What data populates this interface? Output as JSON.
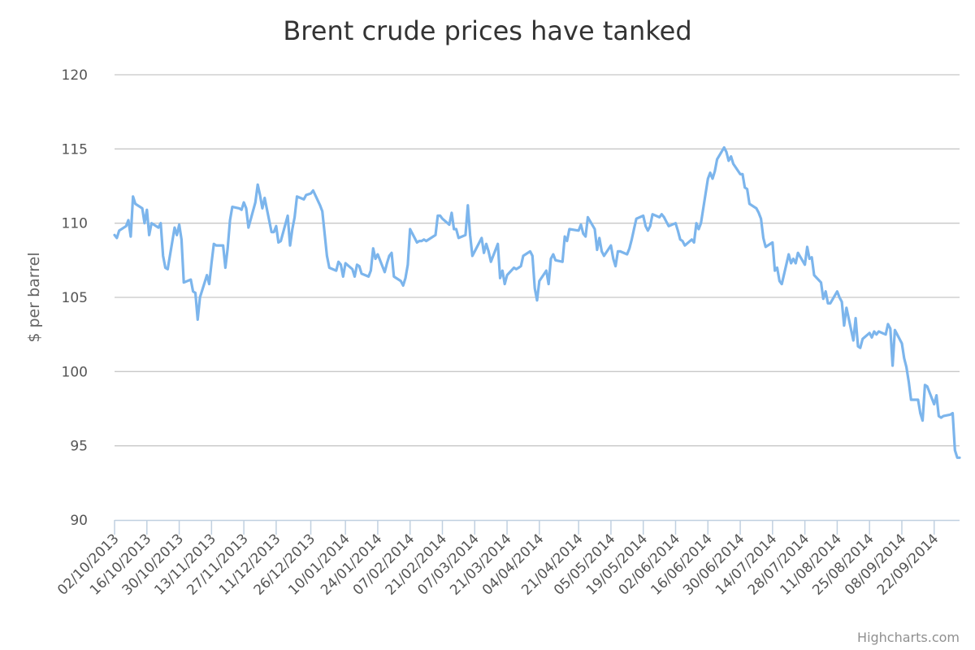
{
  "chart_data": {
    "type": "line",
    "title": "Brent crude prices have tanked",
    "ylabel": "$ per barrel",
    "xlabel": "",
    "ylim": [
      90,
      120
    ],
    "y_ticks": [
      "120",
      "115",
      "110",
      "105",
      "100",
      "95",
      "90"
    ],
    "x_tick_labels": [
      "02/10/2013",
      "16/10/2013",
      "30/10/2013",
      "13/11/2013",
      "27/11/2013",
      "11/12/2013",
      "26/12/2013",
      "10/01/2014",
      "24/01/2014",
      "07/02/2014",
      "21/02/2014",
      "07/03/2014",
      "21/03/2014",
      "04/04/2014",
      "21/04/2014",
      "05/05/2014",
      "19/05/2014",
      "02/06/2014",
      "16/06/2014",
      "30/06/2014",
      "14/07/2014",
      "28/07/2014",
      "11/08/2014",
      "25/08/2014",
      "08/09/2014",
      "22/09/2014"
    ],
    "grid": true,
    "legend": "none",
    "series": [
      {
        "color": "#7cb5ec",
        "points": [
          [
            "02/10/2013",
            109.2
          ],
          [
            "03/10/2013",
            109.0
          ],
          [
            "04/10/2013",
            109.5
          ],
          [
            "07/10/2013",
            109.8
          ],
          [
            "08/10/2013",
            110.2
          ],
          [
            "09/10/2013",
            109.1
          ],
          [
            "10/10/2013",
            111.8
          ],
          [
            "11/10/2013",
            111.3
          ],
          [
            "14/10/2013",
            111.0
          ],
          [
            "15/10/2013",
            110.0
          ],
          [
            "16/10/2013",
            110.9
          ],
          [
            "17/10/2013",
            109.2
          ],
          [
            "18/10/2013",
            110.0
          ],
          [
            "21/10/2013",
            109.7
          ],
          [
            "22/10/2013",
            110.0
          ],
          [
            "23/10/2013",
            107.8
          ],
          [
            "24/10/2013",
            107.0
          ],
          [
            "25/10/2013",
            106.9
          ],
          [
            "28/10/2013",
            109.7
          ],
          [
            "29/10/2013",
            109.2
          ],
          [
            "30/10/2013",
            109.9
          ],
          [
            "31/10/2013",
            108.9
          ],
          [
            "01/11/2013",
            106.0
          ],
          [
            "04/11/2013",
            106.2
          ],
          [
            "05/11/2013",
            105.4
          ],
          [
            "06/11/2013",
            105.3
          ],
          [
            "07/11/2013",
            103.5
          ],
          [
            "08/11/2013",
            105.0
          ],
          [
            "11/11/2013",
            106.5
          ],
          [
            "12/11/2013",
            105.9
          ],
          [
            "13/11/2013",
            107.3
          ],
          [
            "14/11/2013",
            108.6
          ],
          [
            "15/11/2013",
            108.5
          ],
          [
            "18/11/2013",
            108.5
          ],
          [
            "19/11/2013",
            107.0
          ],
          [
            "20/11/2013",
            108.3
          ],
          [
            "21/11/2013",
            110.2
          ],
          [
            "22/11/2013",
            111.1
          ],
          [
            "25/11/2013",
            111.0
          ],
          [
            "26/11/2013",
            110.9
          ],
          [
            "27/11/2013",
            111.4
          ],
          [
            "28/11/2013",
            111.0
          ],
          [
            "29/11/2013",
            109.7
          ],
          [
            "02/12/2013",
            111.4
          ],
          [
            "03/12/2013",
            112.6
          ],
          [
            "04/12/2013",
            111.9
          ],
          [
            "05/12/2013",
            111.0
          ],
          [
            "06/12/2013",
            111.7
          ],
          [
            "09/12/2013",
            109.4
          ],
          [
            "10/12/2013",
            109.4
          ],
          [
            "11/12/2013",
            109.8
          ],
          [
            "12/12/2013",
            108.7
          ],
          [
            "13/12/2013",
            108.8
          ],
          [
            "16/12/2013",
            110.5
          ],
          [
            "17/12/2013",
            108.5
          ],
          [
            "18/12/2013",
            109.6
          ],
          [
            "19/12/2013",
            110.4
          ],
          [
            "20/12/2013",
            111.8
          ],
          [
            "23/12/2013",
            111.6
          ],
          [
            "24/12/2013",
            111.9
          ],
          [
            "26/12/2013",
            112.0
          ],
          [
            "27/12/2013",
            112.2
          ],
          [
            "30/12/2013",
            111.2
          ],
          [
            "31/12/2013",
            110.8
          ],
          [
            "02/01/2014",
            107.8
          ],
          [
            "03/01/2014",
            107.0
          ],
          [
            "06/01/2014",
            106.8
          ],
          [
            "07/01/2014",
            107.4
          ],
          [
            "08/01/2014",
            107.2
          ],
          [
            "09/01/2014",
            106.4
          ],
          [
            "10/01/2014",
            107.3
          ],
          [
            "13/01/2014",
            106.9
          ],
          [
            "14/01/2014",
            106.4
          ],
          [
            "15/01/2014",
            107.2
          ],
          [
            "16/01/2014",
            107.1
          ],
          [
            "17/01/2014",
            106.6
          ],
          [
            "20/01/2014",
            106.4
          ],
          [
            "21/01/2014",
            106.8
          ],
          [
            "22/01/2014",
            108.3
          ],
          [
            "23/01/2014",
            107.6
          ],
          [
            "24/01/2014",
            107.9
          ],
          [
            "27/01/2014",
            106.7
          ],
          [
            "28/01/2014",
            107.3
          ],
          [
            "29/01/2014",
            107.8
          ],
          [
            "30/01/2014",
            108.0
          ],
          [
            "31/01/2014",
            106.4
          ],
          [
            "03/02/2014",
            106.1
          ],
          [
            "04/02/2014",
            105.8
          ],
          [
            "05/02/2014",
            106.3
          ],
          [
            "06/02/2014",
            107.2
          ],
          [
            "07/02/2014",
            109.6
          ],
          [
            "10/02/2014",
            108.7
          ],
          [
            "11/02/2014",
            108.8
          ],
          [
            "12/02/2014",
            108.8
          ],
          [
            "13/02/2014",
            108.9
          ],
          [
            "14/02/2014",
            108.8
          ],
          [
            "17/02/2014",
            109.1
          ],
          [
            "18/02/2014",
            109.2
          ],
          [
            "19/02/2014",
            110.5
          ],
          [
            "20/02/2014",
            110.5
          ],
          [
            "21/02/2014",
            110.3
          ],
          [
            "24/02/2014",
            109.9
          ],
          [
            "25/02/2014",
            110.7
          ],
          [
            "26/02/2014",
            109.6
          ],
          [
            "27/02/2014",
            109.6
          ],
          [
            "28/02/2014",
            109.0
          ],
          [
            "03/03/2014",
            109.2
          ],
          [
            "04/03/2014",
            111.2
          ],
          [
            "05/03/2014",
            109.2
          ],
          [
            "06/03/2014",
            107.8
          ],
          [
            "07/03/2014",
            108.1
          ],
          [
            "10/03/2014",
            109.0
          ],
          [
            "11/03/2014",
            108.0
          ],
          [
            "12/03/2014",
            108.6
          ],
          [
            "13/03/2014",
            108.1
          ],
          [
            "14/03/2014",
            107.4
          ],
          [
            "17/03/2014",
            108.6
          ],
          [
            "18/03/2014",
            106.3
          ],
          [
            "19/03/2014",
            106.8
          ],
          [
            "20/03/2014",
            105.9
          ],
          [
            "21/03/2014",
            106.5
          ],
          [
            "24/03/2014",
            107.0
          ],
          [
            "25/03/2014",
            106.9
          ],
          [
            "26/03/2014",
            107.0
          ],
          [
            "27/03/2014",
            107.1
          ],
          [
            "28/03/2014",
            107.8
          ],
          [
            "31/03/2014",
            108.1
          ],
          [
            "01/04/2014",
            107.8
          ],
          [
            "02/04/2014",
            105.6
          ],
          [
            "03/04/2014",
            104.8
          ],
          [
            "04/04/2014",
            106.1
          ],
          [
            "07/04/2014",
            106.8
          ],
          [
            "08/04/2014",
            105.9
          ],
          [
            "09/04/2014",
            107.6
          ],
          [
            "10/04/2014",
            107.9
          ],
          [
            "11/04/2014",
            107.5
          ],
          [
            "14/04/2014",
            107.4
          ],
          [
            "15/04/2014",
            109.1
          ],
          [
            "16/04/2014",
            108.8
          ],
          [
            "17/04/2014",
            109.6
          ],
          [
            "21/04/2014",
            109.5
          ],
          [
            "22/04/2014",
            109.9
          ],
          [
            "23/04/2014",
            109.3
          ],
          [
            "24/04/2014",
            109.1
          ],
          [
            "25/04/2014",
            110.4
          ],
          [
            "28/04/2014",
            109.6
          ],
          [
            "29/04/2014",
            108.2
          ],
          [
            "30/04/2014",
            109.0
          ],
          [
            "01/05/2014",
            108.1
          ],
          [
            "02/05/2014",
            107.8
          ],
          [
            "05/05/2014",
            108.5
          ],
          [
            "06/05/2014",
            107.6
          ],
          [
            "07/05/2014",
            107.1
          ],
          [
            "08/05/2014",
            108.1
          ],
          [
            "09/05/2014",
            108.1
          ],
          [
            "12/05/2014",
            107.9
          ],
          [
            "13/05/2014",
            108.3
          ],
          [
            "14/05/2014",
            108.9
          ],
          [
            "15/05/2014",
            109.6
          ],
          [
            "16/05/2014",
            110.3
          ],
          [
            "19/05/2014",
            110.5
          ],
          [
            "20/05/2014",
            109.8
          ],
          [
            "21/05/2014",
            109.5
          ],
          [
            "22/05/2014",
            109.8
          ],
          [
            "23/05/2014",
            110.6
          ],
          [
            "26/05/2014",
            110.4
          ],
          [
            "27/05/2014",
            110.6
          ],
          [
            "28/05/2014",
            110.4
          ],
          [
            "29/05/2014",
            110.1
          ],
          [
            "30/05/2014",
            109.8
          ],
          [
            "02/06/2014",
            110.0
          ],
          [
            "03/06/2014",
            109.5
          ],
          [
            "04/06/2014",
            108.9
          ],
          [
            "05/06/2014",
            108.8
          ],
          [
            "06/06/2014",
            108.5
          ],
          [
            "09/06/2014",
            108.9
          ],
          [
            "10/06/2014",
            108.7
          ],
          [
            "11/06/2014",
            110.0
          ],
          [
            "12/06/2014",
            109.6
          ],
          [
            "13/06/2014",
            110.0
          ],
          [
            "16/06/2014",
            113.0
          ],
          [
            "17/06/2014",
            113.4
          ],
          [
            "18/06/2014",
            113.0
          ],
          [
            "19/06/2014",
            113.5
          ],
          [
            "20/06/2014",
            114.3
          ],
          [
            "23/06/2014",
            115.1
          ],
          [
            "24/06/2014",
            114.8
          ],
          [
            "25/06/2014",
            114.2
          ],
          [
            "26/06/2014",
            114.5
          ],
          [
            "27/06/2014",
            114.0
          ],
          [
            "30/06/2014",
            113.3
          ],
          [
            "01/07/2014",
            113.3
          ],
          [
            "02/07/2014",
            112.4
          ],
          [
            "03/07/2014",
            112.3
          ],
          [
            "04/07/2014",
            111.3
          ],
          [
            "07/07/2014",
            111.0
          ],
          [
            "08/07/2014",
            110.7
          ],
          [
            "09/07/2014",
            110.3
          ],
          [
            "10/07/2014",
            109.0
          ],
          [
            "11/07/2014",
            108.4
          ],
          [
            "14/07/2014",
            108.7
          ],
          [
            "15/07/2014",
            106.8
          ],
          [
            "16/07/2014",
            107.0
          ],
          [
            "17/07/2014",
            106.1
          ],
          [
            "18/07/2014",
            105.9
          ],
          [
            "21/07/2014",
            107.9
          ],
          [
            "22/07/2014",
            107.3
          ],
          [
            "23/07/2014",
            107.6
          ],
          [
            "24/07/2014",
            107.3
          ],
          [
            "25/07/2014",
            108.0
          ],
          [
            "28/07/2014",
            107.2
          ],
          [
            "29/07/2014",
            108.4
          ],
          [
            "30/07/2014",
            107.6
          ],
          [
            "31/07/2014",
            107.7
          ],
          [
            "01/08/2014",
            106.5
          ],
          [
            "04/08/2014",
            106.0
          ],
          [
            "05/08/2014",
            104.9
          ],
          [
            "06/08/2014",
            105.4
          ],
          [
            "07/08/2014",
            104.6
          ],
          [
            "08/08/2014",
            104.6
          ],
          [
            "11/08/2014",
            105.4
          ],
          [
            "12/08/2014",
            105.0
          ],
          [
            "13/08/2014",
            104.7
          ],
          [
            "14/08/2014",
            103.1
          ],
          [
            "15/08/2014",
            104.3
          ],
          [
            "18/08/2014",
            102.1
          ],
          [
            "19/08/2014",
            103.6
          ],
          [
            "20/08/2014",
            101.7
          ],
          [
            "21/08/2014",
            101.6
          ],
          [
            "22/08/2014",
            102.2
          ],
          [
            "25/08/2014",
            102.6
          ],
          [
            "26/08/2014",
            102.3
          ],
          [
            "27/08/2014",
            102.7
          ],
          [
            "28/08/2014",
            102.5
          ],
          [
            "29/08/2014",
            102.7
          ],
          [
            "01/09/2014",
            102.5
          ],
          [
            "02/09/2014",
            103.2
          ],
          [
            "03/09/2014",
            102.9
          ],
          [
            "04/09/2014",
            100.4
          ],
          [
            "05/09/2014",
            102.8
          ],
          [
            "08/09/2014",
            101.9
          ],
          [
            "09/09/2014",
            100.9
          ],
          [
            "10/09/2014",
            100.3
          ],
          [
            "11/09/2014",
            99.3
          ],
          [
            "12/09/2014",
            98.1
          ],
          [
            "15/09/2014",
            98.1
          ],
          [
            "16/09/2014",
            97.2
          ],
          [
            "17/09/2014",
            96.7
          ],
          [
            "18/09/2014",
            99.1
          ],
          [
            "19/09/2014",
            99.0
          ],
          [
            "22/09/2014",
            97.8
          ],
          [
            "23/09/2014",
            98.4
          ],
          [
            "24/09/2014",
            97.0
          ],
          [
            "25/09/2014",
            96.9
          ],
          [
            "26/09/2014",
            97.0
          ],
          [
            "29/09/2014",
            97.1
          ],
          [
            "30/09/2014",
            97.2
          ],
          [
            "01/10/2014",
            94.7
          ],
          [
            "02/10/2014",
            94.2
          ],
          [
            "03/10/2014",
            94.2
          ]
        ]
      }
    ]
  },
  "credits": "Highcharts.com"
}
